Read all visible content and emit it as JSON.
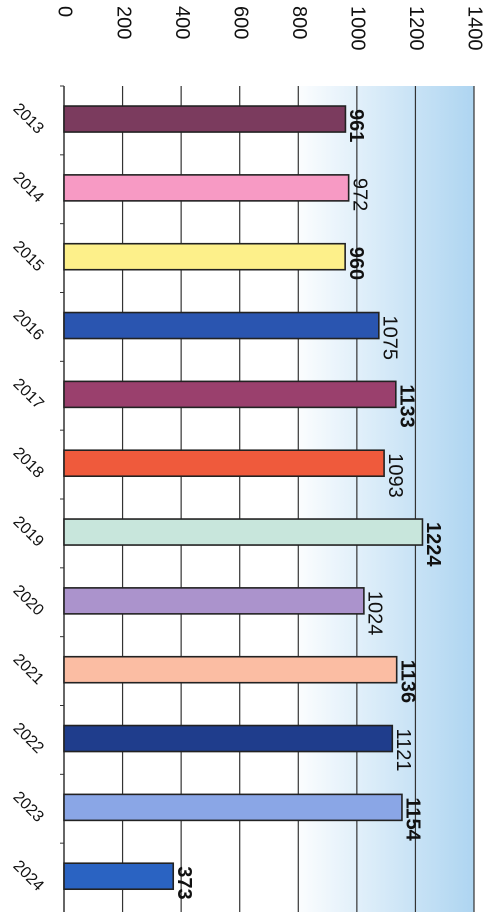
{
  "chart_data": {
    "type": "bar",
    "orientation": "horizontal",
    "categories": [
      "2013",
      "2014",
      "2015",
      "2016",
      "2017",
      "2018",
      "2019",
      "2020",
      "2021",
      "2022",
      "2023",
      "2024"
    ],
    "values": [
      961,
      972,
      960,
      1075,
      1133,
      1093,
      1224,
      1024,
      1136,
      1121,
      1154,
      373
    ],
    "data_labels": [
      "961",
      "972",
      "960",
      "1075",
      "1133",
      "1093",
      "1224",
      "1024",
      "1136",
      "1121",
      "1154",
      "373"
    ],
    "bold_labels": [
      true,
      false,
      true,
      false,
      true,
      false,
      true,
      false,
      true,
      false,
      true,
      true
    ],
    "colors": [
      "#7b3b5e",
      "#f79ac4",
      "#fdf08a",
      "#2a55b0",
      "#9a406d",
      "#ef5a3c",
      "#c8e6dc",
      "#ab93cc",
      "#fbbda3",
      "#1f3d8c",
      "#8aa6e6",
      "#2a63c2"
    ],
    "xlim": [
      0,
      1400
    ],
    "xticks": [
      0,
      200,
      400,
      600,
      800,
      1000,
      1200,
      1400
    ],
    "grid": true,
    "background_gradient": [
      "#ffffff",
      "#aed5f1"
    ],
    "title": "",
    "xlabel": "",
    "ylabel": ""
  }
}
